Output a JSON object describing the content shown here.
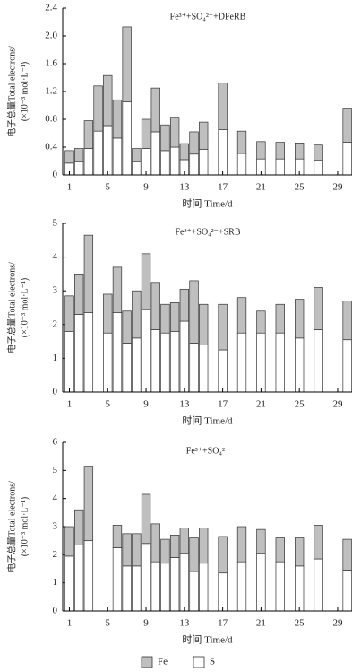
{
  "chart_data": [
    {
      "type": "bar",
      "stacked": true,
      "title": "Fe³⁺+SO₄²⁻+DFeRB",
      "ylabel": [
        "电子总量Total electrons/",
        "(×10⁻³ mol·L⁻¹)"
      ],
      "xlabel": "时间 Time/d",
      "x": [
        1,
        2,
        3,
        4,
        5,
        6,
        7,
        8,
        9,
        10,
        11,
        12,
        13,
        14,
        15,
        17,
        19,
        21,
        23,
        25,
        27,
        30
      ],
      "series": [
        {
          "color": "#bfbfbf",
          "values": [
            0.18,
            0.19,
            0.4,
            0.65,
            0.72,
            0.55,
            1.08,
            0.19,
            0.42,
            0.63,
            0.37,
            0.43,
            0.23,
            0.32,
            0.39,
            0.67,
            0.32,
            0.25,
            0.24,
            0.23,
            0.22,
            0.49
          ]
        },
        {
          "color": "#ffffff",
          "values": [
            0.17,
            0.19,
            0.38,
            0.63,
            0.71,
            0.53,
            1.05,
            0.19,
            0.38,
            0.62,
            0.35,
            0.4,
            0.22,
            0.3,
            0.37,
            0.65,
            0.31,
            0.23,
            0.23,
            0.23,
            0.21,
            0.47
          ]
        }
      ],
      "xlim": [
        0.3,
        30.5
      ],
      "xticks": [
        1,
        5,
        9,
        13,
        17,
        21,
        25,
        29
      ],
      "ylim": [
        0,
        2.4
      ],
      "yticks": [
        0,
        {
          "value": 0.4,
          "label": "0.4"
        },
        {
          "value": 0.8,
          "label": "0.8"
        },
        {
          "value": 1.2,
          "label": "1.2"
        },
        {
          "value": 1.6,
          "label": "1.6"
        },
        {
          "value": 2.0,
          "label": "2.0"
        },
        {
          "value": 2.4,
          "label": "2.4"
        }
      ]
    },
    {
      "type": "bar",
      "stacked": true,
      "title": "Fe³⁺+SO₄²⁻+SRB",
      "ylabel": [
        "电子总量Total electrons/",
        "(×10⁻³ mol·L⁻¹)"
      ],
      "xlabel": "时间 Time/d",
      "x": [
        1,
        2,
        3,
        5,
        6,
        7,
        8,
        9,
        10,
        11,
        12,
        13,
        14,
        15,
        17,
        19,
        21,
        23,
        25,
        27,
        30
      ],
      "series": [
        {
          "color": "#bfbfbf",
          "values": [
            1.05,
            1.2,
            2.3,
            1.15,
            1.35,
            0.95,
            1.4,
            1.65,
            1.4,
            0.85,
            0.85,
            0.95,
            1.85,
            1.2,
            1.35,
            1.05,
            0.65,
            0.85,
            1.15,
            1.25,
            1.15
          ]
        },
        {
          "color": "#ffffff",
          "values": [
            1.8,
            2.3,
            2.35,
            1.75,
            2.35,
            1.45,
            1.6,
            2.45,
            1.85,
            1.75,
            1.8,
            2.1,
            1.45,
            1.4,
            1.25,
            1.75,
            1.75,
            1.75,
            1.6,
            1.85,
            1.55
          ]
        }
      ],
      "xlim": [
        0.3,
        30.5
      ],
      "xticks": [
        1,
        5,
        9,
        13,
        17,
        21,
        25,
        29
      ],
      "ylim": [
        0,
        5
      ],
      "yticks": [
        0,
        1,
        2,
        3,
        4,
        5
      ]
    },
    {
      "type": "bar",
      "stacked": true,
      "title": "Fe³⁺+SO₄²⁻",
      "ylabel": [
        "电子总量Total electrons/",
        "(×10⁻³ mol·L⁻¹)"
      ],
      "xlabel": "时间 Time/d",
      "x": [
        1,
        2,
        3,
        6,
        7,
        8,
        9,
        10,
        11,
        12,
        13,
        14,
        15,
        17,
        19,
        21,
        23,
        25,
        27,
        30
      ],
      "series": [
        {
          "name": "Fe",
          "color": "#bfbfbf",
          "values": [
            1.05,
            1.25,
            2.65,
            0.8,
            1.15,
            1.15,
            1.75,
            1.35,
            0.85,
            0.8,
            0.9,
            1.2,
            1.25,
            1.3,
            1.25,
            0.85,
            0.85,
            1.0,
            1.2,
            1.1
          ]
        },
        {
          "name": "S",
          "color": "#ffffff",
          "values": [
            1.95,
            2.35,
            2.5,
            2.25,
            1.6,
            1.6,
            2.4,
            1.75,
            1.7,
            1.9,
            2.05,
            1.4,
            1.7,
            1.35,
            1.75,
            2.05,
            1.75,
            1.6,
            1.85,
            1.45
          ]
        }
      ],
      "xlim": [
        0.3,
        30.5
      ],
      "xticks": [
        1,
        5,
        9,
        13,
        17,
        21,
        25,
        29
      ],
      "ylim": [
        0,
        6
      ],
      "yticks": [
        0,
        1,
        2,
        3,
        4,
        5,
        6
      ]
    }
  ]
}
